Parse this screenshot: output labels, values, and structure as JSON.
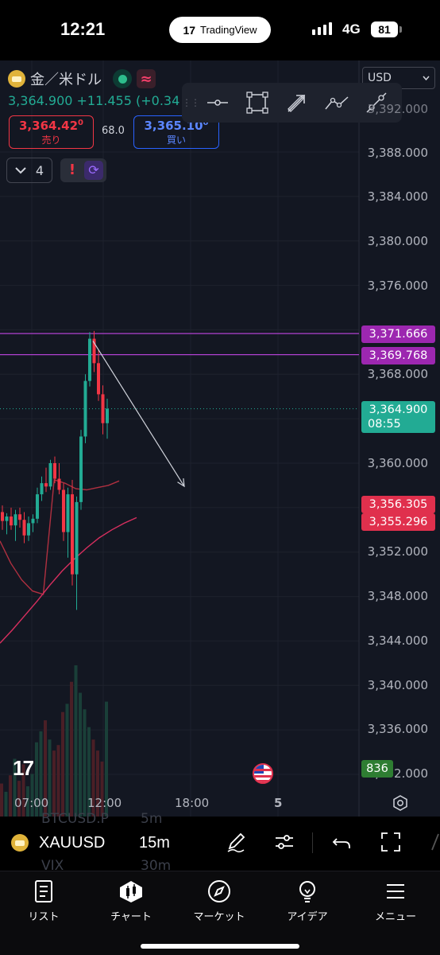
{
  "status_bar": {
    "time": "12:21",
    "app_pill": "TradingView",
    "app_pill_logo": "17",
    "network": "4G",
    "battery": "81"
  },
  "header": {
    "symbol_name": "金／米ドル",
    "quote": "3,364.900 +11.455 (+0.34",
    "sell": {
      "price": "3,364.42",
      "price_sup": "0",
      "label": "売り"
    },
    "buy": {
      "price": "3,365.10",
      "price_sup": "0",
      "label": "買い"
    },
    "spread": "68.0",
    "indicator_count": "4",
    "currency": "USD"
  },
  "drawing_tools": [
    "horizontal-ray-icon",
    "rectangle-icon",
    "arrow-icon",
    "path-icon",
    "trend-line-icon"
  ],
  "price_axis": {
    "labels": [
      "3,388.000",
      "3,384.000",
      "3,380.000",
      "3,376.000",
      "3,368.000",
      "3,360.000",
      "3,352.000",
      "3,348.000",
      "3,344.000",
      "3,340.000",
      "3,336.000",
      "3,332.000"
    ],
    "partial_top": "3,392.000",
    "tags": {
      "level_upper": "3,371.666",
      "level_lower": "3,369.768",
      "last_price": "3,364.900",
      "countdown": "08:55",
      "red_upper": "3,356.305",
      "red_lower": "3,355.296",
      "volume": "836"
    }
  },
  "time_axis": [
    "07:00",
    "12:00",
    "18:00",
    "5"
  ],
  "watermark": "17",
  "ghost_list": {
    "symbol1": "BTCUSD.P",
    "interval1": "5m",
    "symbol2": "VIX",
    "interval2": "30m"
  },
  "symbol_bar": {
    "symbol": "XAUUSD",
    "interval": "15m"
  },
  "tabs": [
    {
      "label": "リスト",
      "icon": "watchlist-icon"
    },
    {
      "label": "チャート",
      "icon": "chart-icon"
    },
    {
      "label": "マーケット",
      "icon": "compass-icon"
    },
    {
      "label": "アイデア",
      "icon": "lightbulb-icon"
    },
    {
      "label": "メニュー",
      "icon": "menu-icon"
    }
  ],
  "chart_data": {
    "type": "candlestick",
    "interval": "15m",
    "ylim": [
      3331,
      3391
    ],
    "horizontal_levels": [
      3371.666,
      3369.768
    ],
    "last_price": 3364.9,
    "colors": {
      "up": "#22ab94",
      "down": "#f23645",
      "ma_fast": "#b03040",
      "ma_slow": "#d82f5f",
      "level": "#b040d0"
    },
    "candles": [
      [
        3355.6,
        3356.2,
        3354.0,
        3354.8
      ],
      [
        3354.8,
        3355.5,
        3353.6,
        3355.2
      ],
      [
        3355.2,
        3356.0,
        3354.0,
        3354.4
      ],
      [
        3354.4,
        3355.8,
        3353.0,
        3355.4
      ],
      [
        3355.4,
        3356.0,
        3354.2,
        3354.9
      ],
      [
        3354.9,
        3355.6,
        3352.8,
        3353.5
      ],
      [
        3353.5,
        3355.2,
        3353.0,
        3354.6
      ],
      [
        3354.6,
        3355.4,
        3353.8,
        3355.0
      ],
      [
        3355.0,
        3357.8,
        3354.6,
        3357.2
      ],
      [
        3357.2,
        3358.8,
        3356.6,
        3358.2
      ],
      [
        3358.2,
        3359.6,
        3357.4,
        3357.9
      ],
      [
        3357.9,
        3360.3,
        3357.6,
        3360.0
      ],
      [
        3360.0,
        3360.6,
        3358.2,
        3358.6
      ],
      [
        3358.6,
        3360.0,
        3357.2,
        3357.6
      ],
      [
        3357.6,
        3358.2,
        3353.0,
        3353.8
      ],
      [
        3353.8,
        3357.8,
        3351.5,
        3357.2
      ],
      [
        3357.2,
        3358.5,
        3349.0,
        3350.0
      ],
      [
        3350.0,
        3357.0,
        3346.8,
        3356.5
      ],
      [
        3356.5,
        3363.0,
        3355.8,
        3362.4
      ],
      [
        3362.4,
        3368.0,
        3361.8,
        3367.4
      ],
      [
        3367.4,
        3371.8,
        3366.9,
        3371.2
      ],
      [
        3371.2,
        3371.9,
        3368.2,
        3369.0
      ],
      [
        3369.0,
        3370.2,
        3365.6,
        3366.2
      ],
      [
        3366.2,
        3367.0,
        3362.6,
        3363.6
      ],
      [
        3363.6,
        3365.8,
        3362.2,
        3364.9
      ]
    ],
    "ma_fast": [
      3353.0,
      3351.0,
      3349.5,
      3348.5,
      3348.2,
      3358.5,
      3358.2,
      3357.7,
      3357.6,
      3357.8,
      3358.0,
      3358.4
    ],
    "ma_slow": [
      3343.8,
      3345.0,
      3346.3,
      3347.6,
      3349.0,
      3350.3,
      3351.4,
      3352.4,
      3353.3,
      3354.0,
      3354.6,
      3355.1
    ],
    "arrow": {
      "from": [
        3371.0,
        0
      ],
      "to": [
        3361.5,
        1
      ]
    },
    "volumes": [
      240,
      180,
      300,
      420,
      260,
      380,
      220,
      310,
      540,
      620,
      700,
      560,
      480,
      520,
      760,
      820,
      980,
      1100,
      900,
      780,
      650,
      560,
      480,
      400,
      836
    ]
  }
}
